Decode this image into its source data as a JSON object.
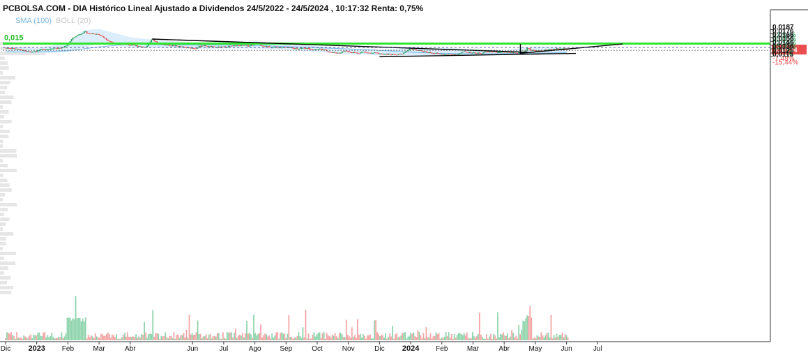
{
  "title": "PCBOLSA.COM - DIA Histórico Lineal Ajustado a Dividendos 24/5/2022 - 24/5/2024 , 10:17:32 Renta: 0,75%",
  "legend": {
    "sma": "SMA (100)",
    "boll": "BOLL (20)"
  },
  "colors": {
    "up": "#1f9e55",
    "down": "#ea4d4d",
    "sma": "#7ab8e6",
    "boll_fill": "#d6ebfa",
    "level": "#2ee62e",
    "trendline": "#000000",
    "pct_up": "#1f9e55",
    "pct_down": "#ea4d4d",
    "price_tag": "#ea4d4d"
  },
  "level_line": {
    "value": 0.015,
    "label": "0,015"
  },
  "current_price": {
    "value": 0.0134,
    "label": "0,0134"
  },
  "chart_data": {
    "type": "line",
    "title": "PCBOLSA.COM - DIA Histórico Lineal Ajustado a Dividendos 24/5/2022 - 24/5/2024 , 10:17:32 Renta: 0,75%",
    "xlabel": "",
    "ylabel": "",
    "ylim": [
      0.0112,
      0.019
    ],
    "grid": false,
    "legend": "top-left",
    "x_ticks": [
      {
        "label": "Dic",
        "m": 0
      },
      {
        "label": "2023",
        "m": 1,
        "year": true
      },
      {
        "label": "Feb",
        "m": 2
      },
      {
        "label": "Mar",
        "m": 3
      },
      {
        "label": "Abr",
        "m": 4
      },
      {
        "label": "Jun",
        "m": 6
      },
      {
        "label": "Jul",
        "m": 7
      },
      {
        "label": "Ago",
        "m": 8
      },
      {
        "label": "Sep",
        "m": 9
      },
      {
        "label": "Oct",
        "m": 10
      },
      {
        "label": "Nov",
        "m": 11
      },
      {
        "label": "Dic",
        "m": 12
      },
      {
        "label": "2024",
        "m": 13,
        "year": true
      },
      {
        "label": "Feb",
        "m": 14
      },
      {
        "label": "Mar",
        "m": 15
      },
      {
        "label": "Abr",
        "m": 16
      },
      {
        "label": "May",
        "m": 17
      },
      {
        "label": "Jun",
        "m": 18
      },
      {
        "label": "Jul",
        "m": 19
      }
    ],
    "y_ticks": [
      {
        "price": "0,0187",
        "pct": "37,50%",
        "v": 0.0187,
        "dir": "up"
      },
      {
        "price": "0,0176",
        "pct": "30,00%",
        "v": 0.0176,
        "dir": "up"
      },
      {
        "price": "0,0166",
        "pct": "22,50%",
        "v": 0.0166,
        "dir": "up"
      },
      {
        "price": "0,0156",
        "pct": "15,00%",
        "v": 0.0156,
        "dir": "up"
      },
      {
        "price": "0,0146",
        "pct": "7,51%",
        "v": 0.0146,
        "dir": "up"
      },
      {
        "price": "0,0136",
        "pct": "0,01%",
        "v": 0.0136,
        "dir": "up"
      },
      {
        "price": "0,0125",
        "pct": "-7,48%",
        "v": 0.0125,
        "dir": "down"
      },
      {
        "price": "0,0115",
        "pct": "-15,44%",
        "v": 0.0115,
        "dir": "down"
      }
    ],
    "series": [
      {
        "name": "DIA",
        "points": [
          [
            0.0,
            0.0139
          ],
          [
            0.3,
            0.0136
          ],
          [
            0.6,
            0.0131
          ],
          [
            0.8,
            0.0128
          ],
          [
            1.0,
            0.0131
          ],
          [
            1.2,
            0.0134
          ],
          [
            1.4,
            0.0136
          ],
          [
            1.55,
            0.0139
          ],
          [
            1.7,
            0.0137
          ],
          [
            1.85,
            0.014
          ],
          [
            2.0,
            0.0148
          ],
          [
            2.1,
            0.016
          ],
          [
            2.25,
            0.017
          ],
          [
            2.4,
            0.0176
          ],
          [
            2.55,
            0.0181
          ],
          [
            2.7,
            0.0176
          ],
          [
            2.85,
            0.0177
          ],
          [
            3.0,
            0.0174
          ],
          [
            3.15,
            0.0166
          ],
          [
            3.3,
            0.0158
          ],
          [
            3.45,
            0.0152
          ],
          [
            3.6,
            0.0146
          ],
          [
            3.75,
            0.0149
          ],
          [
            3.9,
            0.0147
          ],
          [
            4.1,
            0.0145
          ],
          [
            4.3,
            0.0143
          ],
          [
            4.5,
            0.014
          ],
          [
            4.7,
            0.0162
          ],
          [
            4.85,
            0.0152
          ],
          [
            5.0,
            0.0148
          ],
          [
            5.2,
            0.0146
          ],
          [
            5.5,
            0.0143
          ],
          [
            5.8,
            0.0139
          ],
          [
            6.1,
            0.0138
          ],
          [
            6.3,
            0.0145
          ],
          [
            6.6,
            0.0141
          ],
          [
            6.9,
            0.014
          ],
          [
            7.2,
            0.0143
          ],
          [
            7.5,
            0.0145
          ],
          [
            7.8,
            0.0144
          ],
          [
            8.0,
            0.015
          ],
          [
            8.1,
            0.0154
          ],
          [
            8.2,
            0.0146
          ],
          [
            8.4,
            0.0141
          ],
          [
            8.7,
            0.014
          ],
          [
            9.0,
            0.0139
          ],
          [
            9.3,
            0.0137
          ],
          [
            9.6,
            0.0138
          ],
          [
            9.9,
            0.0134
          ],
          [
            10.1,
            0.0136
          ],
          [
            10.3,
            0.0131
          ],
          [
            10.5,
            0.0126
          ],
          [
            10.7,
            0.0125
          ],
          [
            10.9,
            0.0131
          ],
          [
            11.1,
            0.0127
          ],
          [
            11.3,
            0.0125
          ],
          [
            11.5,
            0.0128
          ],
          [
            11.7,
            0.0124
          ],
          [
            11.9,
            0.0125
          ],
          [
            12.1,
            0.0121
          ],
          [
            12.3,
            0.0122
          ],
          [
            12.5,
            0.012
          ],
          [
            12.7,
            0.0122
          ],
          [
            12.85,
            0.013
          ],
          [
            13.0,
            0.0136
          ],
          [
            13.15,
            0.0133
          ],
          [
            13.3,
            0.0131
          ],
          [
            13.5,
            0.0128
          ],
          [
            13.7,
            0.0125
          ],
          [
            13.9,
            0.0123
          ],
          [
            14.1,
            0.0121
          ],
          [
            14.3,
            0.0122
          ],
          [
            14.5,
            0.0121
          ],
          [
            14.7,
            0.0128
          ],
          [
            14.9,
            0.0127
          ],
          [
            15.1,
            0.0124
          ],
          [
            15.3,
            0.0126
          ],
          [
            15.5,
            0.0129
          ],
          [
            15.7,
            0.0128
          ],
          [
            15.9,
            0.0127
          ],
          [
            16.1,
            0.0128
          ],
          [
            16.3,
            0.0126
          ],
          [
            16.5,
            0.0125
          ],
          [
            16.65,
            0.0127
          ],
          [
            16.75,
            0.014
          ],
          [
            16.85,
            0.0133
          ],
          [
            17.0,
            0.013
          ],
          [
            17.2,
            0.0131
          ],
          [
            17.4,
            0.0133
          ],
          [
            17.6,
            0.0135
          ],
          [
            17.8,
            0.0137
          ],
          [
            17.95,
            0.0136
          ],
          [
            18.05,
            0.0134
          ]
        ]
      },
      {
        "name": "SMA (100)",
        "points": [
          [
            0.0,
            0.0128
          ],
          [
            1.0,
            0.0128
          ],
          [
            2.0,
            0.0131
          ],
          [
            3.0,
            0.0141
          ],
          [
            4.0,
            0.0149
          ],
          [
            5.0,
            0.0147
          ],
          [
            6.0,
            0.0146
          ],
          [
            7.0,
            0.0146
          ],
          [
            8.0,
            0.0145
          ],
          [
            9.0,
            0.0142
          ],
          [
            10.0,
            0.0139
          ],
          [
            11.0,
            0.0136
          ],
          [
            12.0,
            0.0132
          ],
          [
            13.0,
            0.0127
          ],
          [
            14.0,
            0.0124
          ],
          [
            15.0,
            0.0123
          ],
          [
            16.0,
            0.0123
          ],
          [
            17.0,
            0.0124
          ],
          [
            18.05,
            0.0126
          ]
        ]
      },
      {
        "name": "BOLL (20)",
        "upper": [
          [
            0.0,
            0.0142
          ],
          [
            1.0,
            0.0138
          ],
          [
            2.0,
            0.0152
          ],
          [
            2.5,
            0.0185
          ],
          [
            3.0,
            0.0189
          ],
          [
            3.5,
            0.0178
          ],
          [
            4.0,
            0.0167
          ],
          [
            5.0,
            0.0158
          ],
          [
            6.0,
            0.0153
          ],
          [
            7.0,
            0.015
          ],
          [
            8.0,
            0.0156
          ],
          [
            9.0,
            0.0151
          ],
          [
            10.0,
            0.0143
          ],
          [
            11.0,
            0.0136
          ],
          [
            12.0,
            0.0133
          ],
          [
            13.0,
            0.014
          ],
          [
            14.0,
            0.0139
          ],
          [
            15.0,
            0.0135
          ],
          [
            16.0,
            0.0132
          ],
          [
            17.0,
            0.0142
          ],
          [
            18.05,
            0.014
          ]
        ],
        "lower": [
          [
            0.0,
            0.0127
          ],
          [
            1.0,
            0.0124
          ],
          [
            2.0,
            0.0127
          ],
          [
            2.5,
            0.0139
          ],
          [
            3.0,
            0.015
          ],
          [
            3.5,
            0.0146
          ],
          [
            4.0,
            0.014
          ],
          [
            5.0,
            0.0139
          ],
          [
            6.0,
            0.0136
          ],
          [
            7.0,
            0.0137
          ],
          [
            8.0,
            0.0137
          ],
          [
            9.0,
            0.0134
          ],
          [
            10.0,
            0.0128
          ],
          [
            11.0,
            0.0121
          ],
          [
            12.0,
            0.0119
          ],
          [
            13.0,
            0.0118
          ],
          [
            14.0,
            0.0118
          ],
          [
            15.0,
            0.012
          ],
          [
            16.0,
            0.0121
          ],
          [
            17.0,
            0.0122
          ],
          [
            18.05,
            0.0127
          ]
        ]
      }
    ],
    "trendlines": [
      {
        "from": [
          4.7,
          0.0162
        ],
        "to": [
          16.75,
          0.0127
        ]
      },
      {
        "from": [
          12.0,
          0.0115
        ],
        "to": [
          18.3,
          0.0124
        ]
      },
      {
        "from": [
          16.5,
          0.0124
        ],
        "to": [
          19.8,
          0.0149
        ]
      },
      {
        "from": [
          16.52,
          0.0124
        ],
        "to": [
          16.52,
          0.0149
        ]
      }
    ]
  }
}
